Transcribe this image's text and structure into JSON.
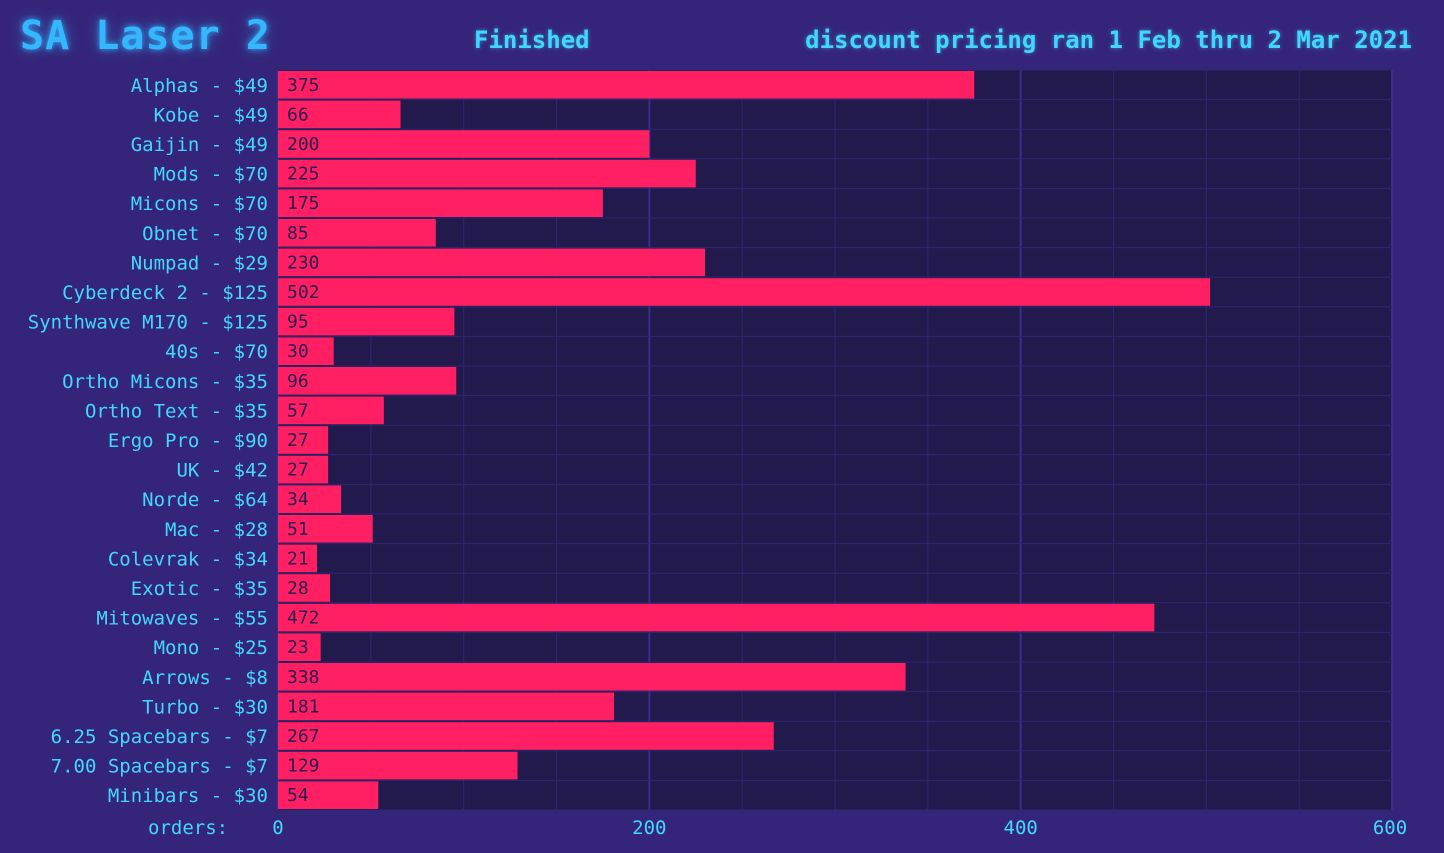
{
  "header": {
    "title": "SA Laser 2",
    "status": "Finished",
    "subtitle": "discount pricing ran 1 Feb thru 2 Mar 2021"
  },
  "colors": {
    "background": "#35257a",
    "plot_background": "#221a4d",
    "bar": "#ff1f62",
    "text": "#41d8ff",
    "title_glow": "#34b7ff",
    "grid": "#3d2d8a"
  },
  "chart_data": {
    "type": "bar",
    "orientation": "horizontal",
    "categories": [
      "Alphas - $49",
      "Kobe - $49",
      "Gaijin - $49",
      "Mods - $70",
      "Micons - $70",
      "Obnet - $70",
      "Numpad - $29",
      "Cyberdeck 2 - $125",
      "Synthwave M170 - $125",
      "40s - $70",
      "Ortho Micons - $35",
      "Ortho Text - $35",
      "Ergo Pro - $90",
      "UK - $42",
      "Norde - $64",
      "Mac - $28",
      "Colevrak - $34",
      "Exotic - $35",
      "Mitowaves - $55",
      "Mono - $25",
      "Arrows - $8",
      "Turbo - $30",
      "6.25 Spacebars - $7",
      "7.00 Spacebars - $7",
      "Minibars - $30"
    ],
    "values": [
      375,
      66,
      200,
      225,
      175,
      85,
      230,
      502,
      95,
      30,
      96,
      57,
      27,
      27,
      34,
      51,
      21,
      28,
      472,
      23,
      338,
      181,
      267,
      129,
      54
    ],
    "xlabel": "orders:",
    "xlim": [
      0,
      600
    ],
    "xticks": [
      0,
      200,
      400,
      600
    ],
    "grid": true
  }
}
